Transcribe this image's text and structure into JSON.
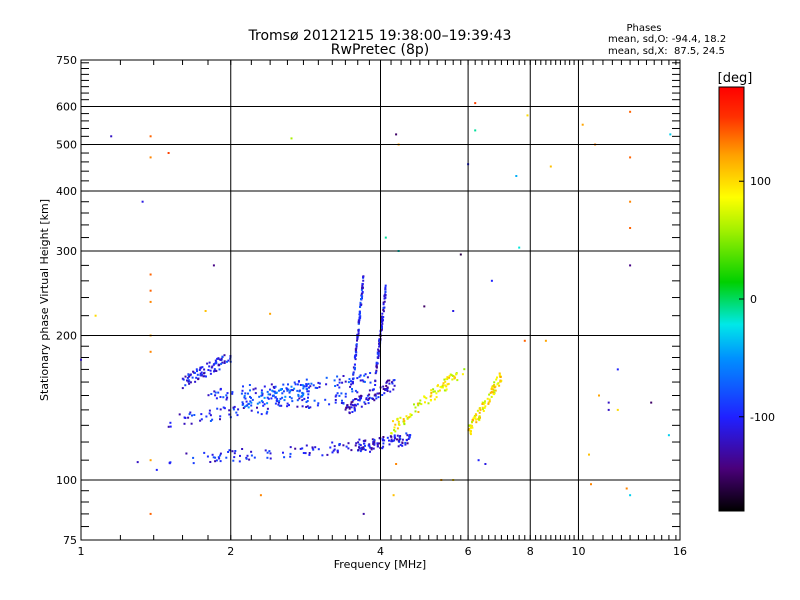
{
  "chart_data": {
    "type": "scatter",
    "title": "Tromsø 20121215 19:38:00–19:39:43",
    "subtitle": "RwPretec (8p)",
    "xlabel": "Frequency [MHz]",
    "ylabel": "Stationary phase Virtual Height [km]",
    "x_scale": "log",
    "y_scale": "log",
    "xlim": [
      1,
      16
    ],
    "ylim": [
      75,
      750
    ],
    "x_ticks": [
      "1",
      "2",
      "4",
      "6",
      "8",
      "10",
      "16"
    ],
    "y_ticks": [
      "75",
      "100",
      "200",
      "300",
      "400",
      "500",
      "600",
      "750"
    ],
    "grid": true,
    "stats": {
      "heading": "Phases",
      "line_o": "mean, sd,O: -94.4, 18.2",
      "line_x": "mean, sd,X:  87.5, 24.5"
    },
    "colorbar": {
      "unit": "[deg]",
      "range": [
        -180,
        180
      ],
      "ticks": [
        "100",
        "0",
        "-100"
      ]
    },
    "traces": [
      {
        "f_start": 1.5,
        "f_end": 3.9,
        "h_start": 110,
        "h_end": 118,
        "phase": -105
      },
      {
        "f_start": 3.6,
        "f_end": 4.6,
        "h_start": 118,
        "h_end": 122,
        "phase": -110
      },
      {
        "f_start": 1.5,
        "f_end": 3.6,
        "h_start": 133,
        "h_end": 150,
        "phase": -100
      },
      {
        "f_start": 1.8,
        "f_end": 3.9,
        "h_start": 150,
        "h_end": 163,
        "phase": -95
      },
      {
        "f_start": 3.4,
        "f_end": 4.3,
        "h_start": 140,
        "h_end": 160,
        "phase": -115
      },
      {
        "f_start": 1.6,
        "f_end": 2.0,
        "h_start": 160,
        "h_end": 180,
        "phase": -105
      },
      {
        "f_start": 2.1,
        "f_end": 2.9,
        "h_start": 145,
        "h_end": 155,
        "phase": -75
      },
      {
        "f_start": 4.2,
        "f_end": 5.9,
        "h_start": 128,
        "h_end": 170,
        "phase": 85
      },
      {
        "f_start": 6.0,
        "f_end": 7.0,
        "h_start": 125,
        "h_end": 165,
        "phase": 90
      },
      {
        "f_start": 3.5,
        "f_end": 3.7,
        "h_start": 150,
        "h_end": 265,
        "phase": -100
      },
      {
        "f_start": 3.9,
        "f_end": 4.1,
        "h_start": 160,
        "h_end": 250,
        "phase": -110
      }
    ],
    "scattered_points": [
      {
        "x": 1.15,
        "y": 520,
        "phase": -120
      },
      {
        "x": 1.38,
        "y": 520,
        "phase": 140
      },
      {
        "x": 1.38,
        "y": 470,
        "phase": 130
      },
      {
        "x": 1.5,
        "y": 480,
        "phase": 150
      },
      {
        "x": 1.33,
        "y": 380,
        "phase": -110
      },
      {
        "x": 2.65,
        "y": 515,
        "phase": 60
      },
      {
        "x": 4.3,
        "y": 525,
        "phase": -150
      },
      {
        "x": 4.35,
        "y": 500,
        "phase": 120
      },
      {
        "x": 6.2,
        "y": 610,
        "phase": 150
      },
      {
        "x": 6.0,
        "y": 455,
        "phase": -100
      },
      {
        "x": 6.2,
        "y": 535,
        "phase": -10
      },
      {
        "x": 7.5,
        "y": 430,
        "phase": -40
      },
      {
        "x": 7.9,
        "y": 575,
        "phase": 100
      },
      {
        "x": 8.8,
        "y": 450,
        "phase": 110
      },
      {
        "x": 10.2,
        "y": 550,
        "phase": 120
      },
      {
        "x": 10.8,
        "y": 500,
        "phase": 130
      },
      {
        "x": 12.7,
        "y": 585,
        "phase": 140
      },
      {
        "x": 12.7,
        "y": 470,
        "phase": 140
      },
      {
        "x": 12.7,
        "y": 380,
        "phase": 130
      },
      {
        "x": 12.7,
        "y": 335,
        "phase": 140
      },
      {
        "x": 12.7,
        "y": 280,
        "phase": -140
      },
      {
        "x": 15.3,
        "y": 525,
        "phase": -30
      },
      {
        "x": 7.6,
        "y": 305,
        "phase": -20
      },
      {
        "x": 5.8,
        "y": 295,
        "phase": -160
      },
      {
        "x": 1.38,
        "y": 268,
        "phase": 140
      },
      {
        "x": 1.38,
        "y": 248,
        "phase": 140
      },
      {
        "x": 1.38,
        "y": 235,
        "phase": 130
      },
      {
        "x": 1.38,
        "y": 200,
        "phase": 120
      },
      {
        "x": 1.38,
        "y": 185,
        "phase": 130
      },
      {
        "x": 1.78,
        "y": 225,
        "phase": 110
      },
      {
        "x": 1.85,
        "y": 280,
        "phase": -140
      },
      {
        "x": 2.4,
        "y": 222,
        "phase": 120
      },
      {
        "x": 4.1,
        "y": 320,
        "phase": -10
      },
      {
        "x": 4.35,
        "y": 300,
        "phase": -20
      },
      {
        "x": 4.9,
        "y": 230,
        "phase": -150
      },
      {
        "x": 5.6,
        "y": 225,
        "phase": -110
      },
      {
        "x": 6.7,
        "y": 260,
        "phase": -100
      },
      {
        "x": 7.8,
        "y": 195,
        "phase": 140
      },
      {
        "x": 8.6,
        "y": 195,
        "phase": 120
      },
      {
        "x": 1.07,
        "y": 220,
        "phase": 100
      },
      {
        "x": 1.0,
        "y": 178,
        "phase": -120
      },
      {
        "x": 11.0,
        "y": 150,
        "phase": -110
      },
      {
        "x": 11.5,
        "y": 140,
        "phase": -120
      },
      {
        "x": 12.0,
        "y": 170,
        "phase": -100
      },
      {
        "x": 11.0,
        "y": 150,
        "phase": 120
      },
      {
        "x": 11.5,
        "y": 145,
        "phase": -120
      },
      {
        "x": 12.0,
        "y": 140,
        "phase": 100
      },
      {
        "x": 14.0,
        "y": 145,
        "phase": -150
      },
      {
        "x": 15.2,
        "y": 124,
        "phase": -30
      },
      {
        "x": 10.5,
        "y": 113,
        "phase": 110
      },
      {
        "x": 12.5,
        "y": 96,
        "phase": 130
      },
      {
        "x": 12.7,
        "y": 93,
        "phase": -30
      },
      {
        "x": 10.6,
        "y": 98,
        "phase": 130
      },
      {
        "x": 1.3,
        "y": 109,
        "phase": -120
      },
      {
        "x": 1.38,
        "y": 110,
        "phase": 120
      },
      {
        "x": 1.42,
        "y": 105,
        "phase": -100
      },
      {
        "x": 2.3,
        "y": 93,
        "phase": 130
      },
      {
        "x": 3.7,
        "y": 85,
        "phase": -130
      },
      {
        "x": 4.25,
        "y": 93,
        "phase": 110
      },
      {
        "x": 5.3,
        "y": 100,
        "phase": 120
      },
      {
        "x": 1.38,
        "y": 85,
        "phase": 140
      },
      {
        "x": 6.3,
        "y": 110,
        "phase": -100
      },
      {
        "x": 6.5,
        "y": 108,
        "phase": -110
      },
      {
        "x": 4.3,
        "y": 108,
        "phase": 130
      },
      {
        "x": 5.6,
        "y": 100,
        "phase": 100
      }
    ]
  }
}
